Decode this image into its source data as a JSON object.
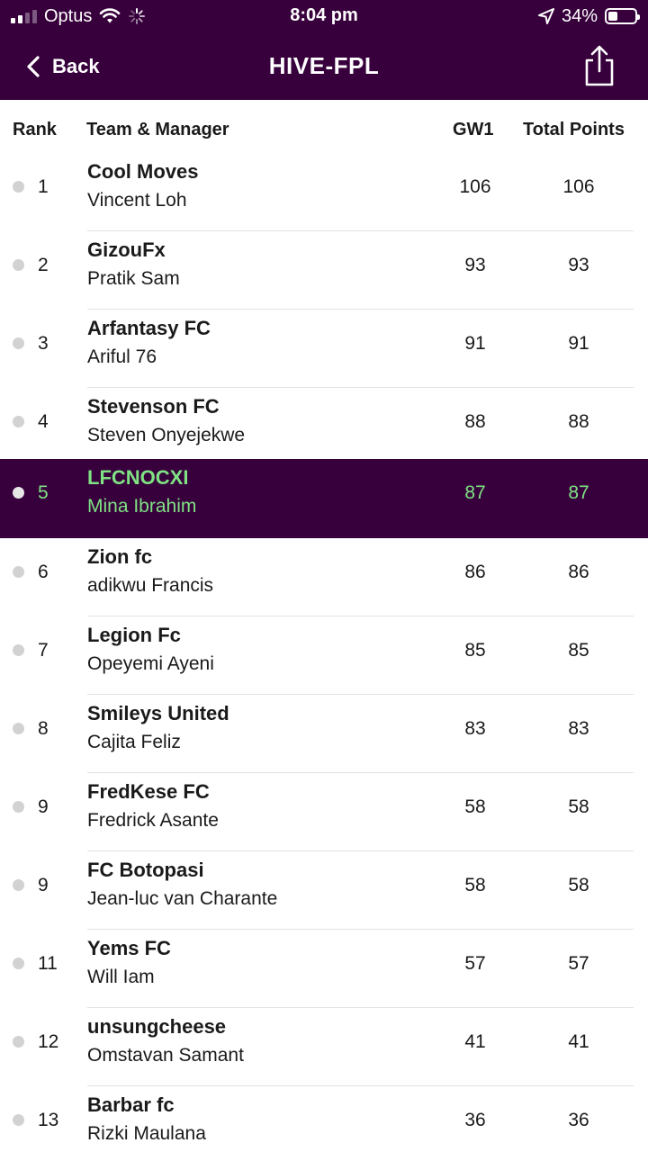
{
  "status_bar": {
    "carrier": "Optus",
    "time": "8:04 pm",
    "battery": "34%",
    "battery_level": 0.34,
    "icons": [
      "signal-icon",
      "wifi-icon",
      "loading-spinner-icon",
      "location-arrow-icon",
      "battery-icon"
    ]
  },
  "nav": {
    "back_label": "Back",
    "title": "HIVE-FPL",
    "icons": [
      "chevron-left-icon",
      "share-icon"
    ]
  },
  "table": {
    "headers": {
      "rank": "Rank",
      "team_manager": "Team & Manager",
      "gw": "GW1",
      "total": "Total Points"
    },
    "rows": [
      {
        "rank": "1",
        "team": "Cool Moves",
        "manager": "Vincent Loh",
        "gw": "106",
        "total": "106"
      },
      {
        "rank": "2",
        "team": "GizouFx",
        "manager": "Pratik Sam",
        "gw": "93",
        "total": "93"
      },
      {
        "rank": "3",
        "team": "Arfantasy FC",
        "manager": "Ariful 76",
        "gw": "91",
        "total": "91"
      },
      {
        "rank": "4",
        "team": "Stevenson FC",
        "manager": "Steven Onyejekwe",
        "gw": "88",
        "total": "88"
      },
      {
        "rank": "5",
        "team": "LFCNOCXI",
        "manager": "Mina Ibrahim",
        "gw": "87",
        "total": "87",
        "highlighted": true
      },
      {
        "rank": "6",
        "team": "Zion fc",
        "manager": "adikwu Francis",
        "gw": "86",
        "total": "86"
      },
      {
        "rank": "7",
        "team": "Legion Fc",
        "manager": "Opeyemi Ayeni",
        "gw": "85",
        "total": "85"
      },
      {
        "rank": "8",
        "team": "Smileys United",
        "manager": "Cajita Feliz",
        "gw": "83",
        "total": "83"
      },
      {
        "rank": "9",
        "team": "FredKese FC",
        "manager": "Fredrick Asante",
        "gw": "58",
        "total": "58"
      },
      {
        "rank": "9",
        "team": "FC Botopasi",
        "manager": "Jean-luc van Charante",
        "gw": "58",
        "total": "58"
      },
      {
        "rank": "11",
        "team": "Yems FC",
        "manager": "Will Iam",
        "gw": "57",
        "total": "57"
      },
      {
        "rank": "12",
        "team": "unsungcheese",
        "manager": "Omstavan Samant",
        "gw": "41",
        "total": "41"
      },
      {
        "rank": "13",
        "team": "Barbar fc",
        "manager": "Rizki Maulana",
        "gw": "36",
        "total": "36"
      }
    ]
  },
  "colors": {
    "header_bg": "#37003c",
    "highlight_bg": "#37003c",
    "highlight_text": "#7fe283",
    "movement_dot": "#d2d2d2"
  }
}
